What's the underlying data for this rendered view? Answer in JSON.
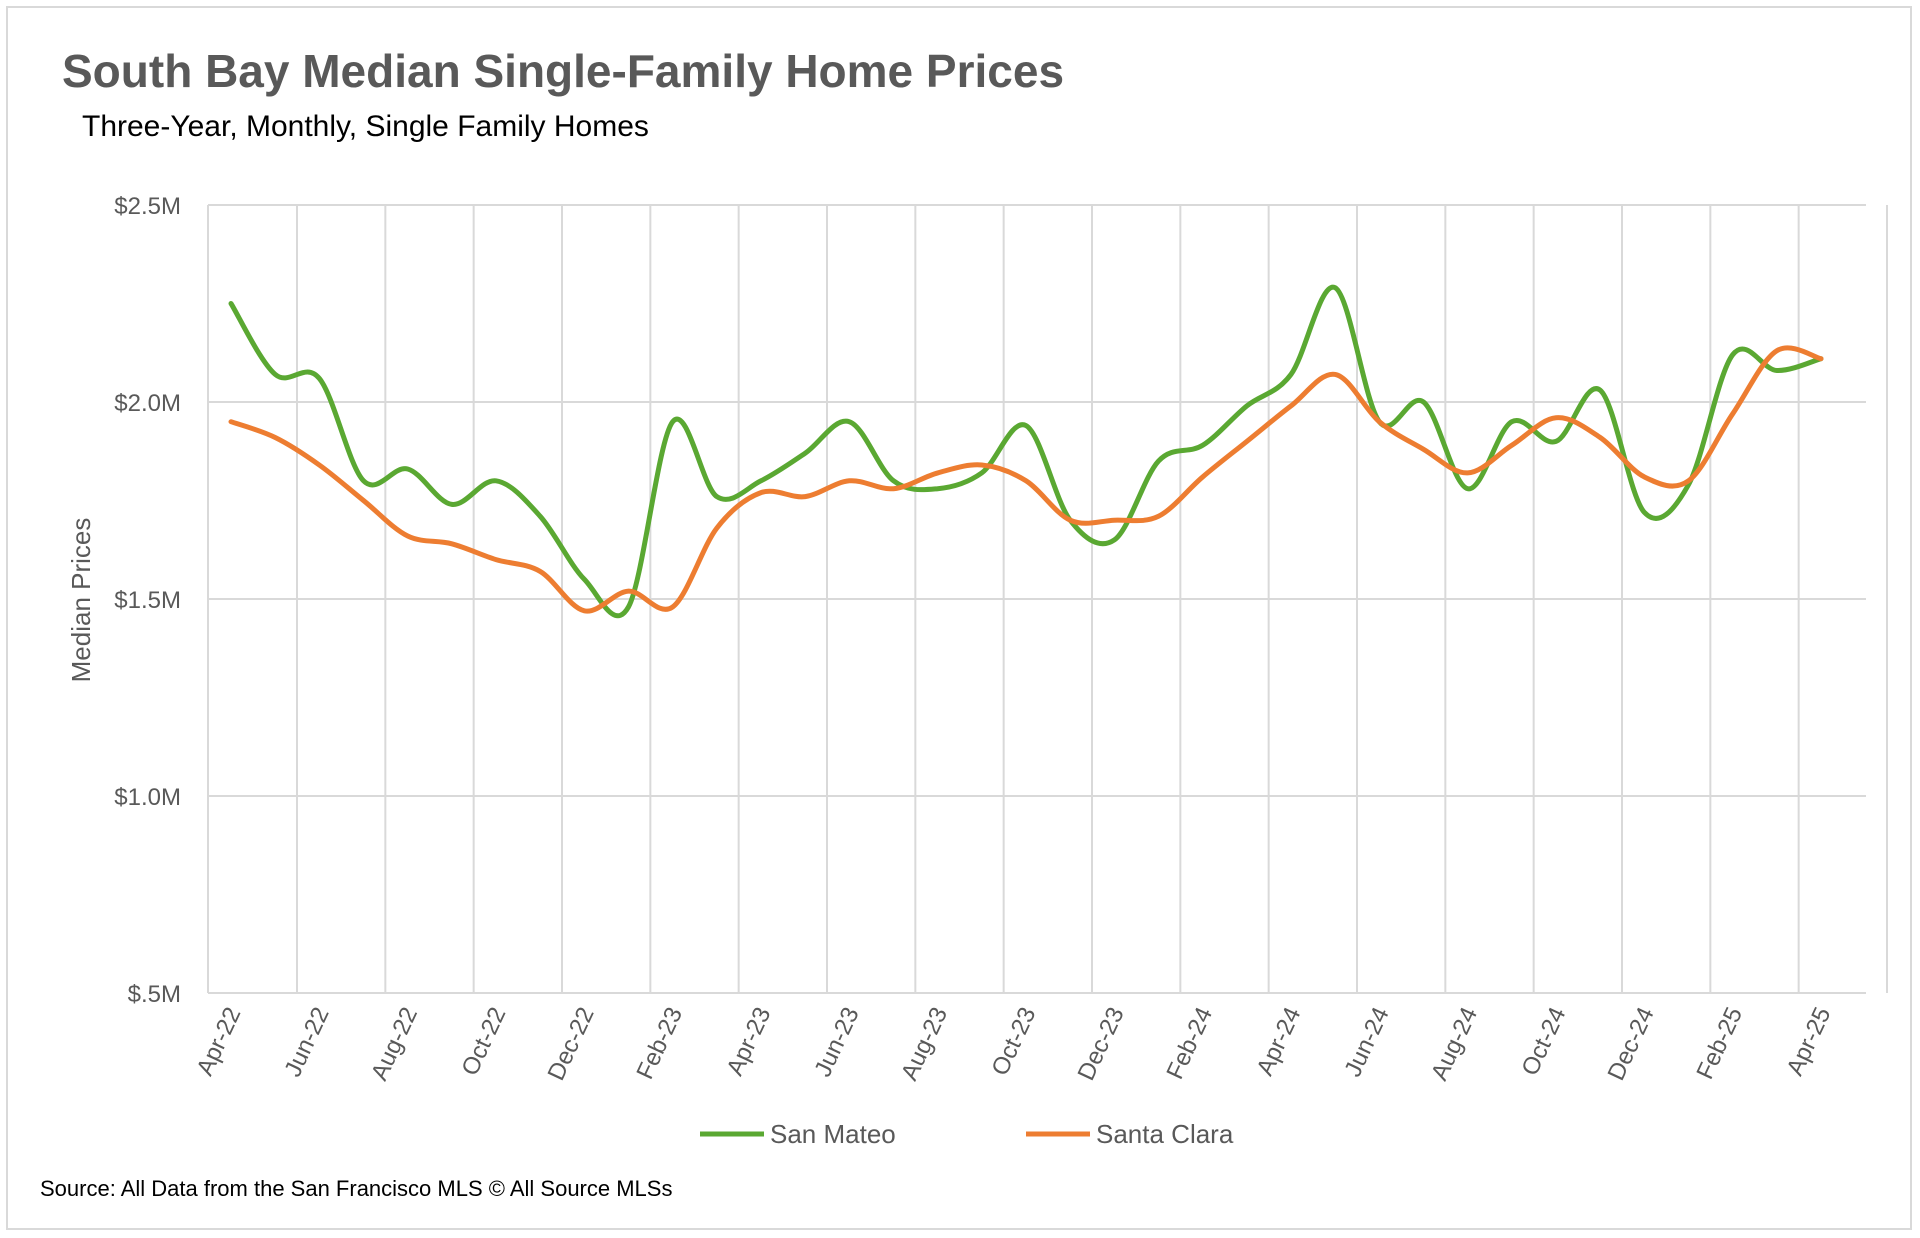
{
  "title": "South Bay Median Single-Family Home Prices",
  "subtitle": "Three-Year, Monthly, Single Family Homes",
  "source": "Source: All Data from the San Francisco MLS © All Source MLSs",
  "chart_data": {
    "type": "line",
    "title": "South Bay Median Single-Family Home Prices",
    "subtitle": "Three-Year, Monthly, Single Family Homes",
    "ylabel": "Median Prices",
    "xlabel": "",
    "ylim": [
      0.5,
      2.5
    ],
    "y_unit": "$M",
    "y_ticks": [
      0.5,
      1.0,
      1.5,
      2.0,
      2.5
    ],
    "y_tick_labels": [
      "$.5M",
      "$1.0M",
      "$1.5M",
      "$2.0M",
      "$2.5M"
    ],
    "grid": "vertical and horizontal",
    "legend": "bottom",
    "x": [
      "Apr-22",
      "May-22",
      "Jun-22",
      "Jul-22",
      "Aug-22",
      "Sep-22",
      "Oct-22",
      "Nov-22",
      "Dec-22",
      "Jan-23",
      "Feb-23",
      "Mar-23",
      "Apr-23",
      "May-23",
      "Jun-23",
      "Jul-23",
      "Aug-23",
      "Sep-23",
      "Oct-23",
      "Nov-23",
      "Dec-23",
      "Jan-24",
      "Feb-24",
      "Mar-24",
      "Apr-24",
      "May-24",
      "Jun-24",
      "Jul-24",
      "Aug-24",
      "Sep-24",
      "Oct-24",
      "Nov-24",
      "Dec-24",
      "Jan-25",
      "Feb-25",
      "Mar-25",
      "Apr-25"
    ],
    "x_tick_labels": [
      "Apr-22",
      "Jun-22",
      "Aug-22",
      "Oct-22",
      "Dec-22",
      "Feb-23",
      "Apr-23",
      "Jun-23",
      "Aug-23",
      "Oct-23",
      "Dec-23",
      "Feb-24",
      "Apr-24",
      "Jun-24",
      "Aug-24",
      "Oct-24",
      "Dec-24",
      "Feb-25",
      "Apr-25"
    ],
    "series": [
      {
        "name": "San Mateo",
        "color": "#5aa832",
        "values": [
          2.25,
          2.07,
          2.06,
          1.8,
          1.83,
          1.74,
          1.8,
          1.71,
          1.55,
          1.48,
          1.95,
          1.76,
          1.8,
          1.87,
          1.95,
          1.8,
          1.78,
          1.82,
          1.94,
          1.7,
          1.65,
          1.85,
          1.89,
          1.99,
          2.07,
          2.29,
          1.95,
          2.0,
          1.78,
          1.95,
          1.9,
          2.03,
          1.72,
          1.79,
          2.12,
          2.08,
          2.11
        ]
      },
      {
        "name": "Santa Clara",
        "color": "#ed7d31",
        "values": [
          1.95,
          1.91,
          1.84,
          1.75,
          1.66,
          1.64,
          1.6,
          1.57,
          1.47,
          1.52,
          1.48,
          1.68,
          1.77,
          1.76,
          1.8,
          1.78,
          1.82,
          1.84,
          1.8,
          1.7,
          1.7,
          1.71,
          1.81,
          1.9,
          1.99,
          2.07,
          1.95,
          1.88,
          1.82,
          1.89,
          1.96,
          1.91,
          1.81,
          1.8,
          1.97,
          2.13,
          2.11
        ]
      }
    ]
  }
}
